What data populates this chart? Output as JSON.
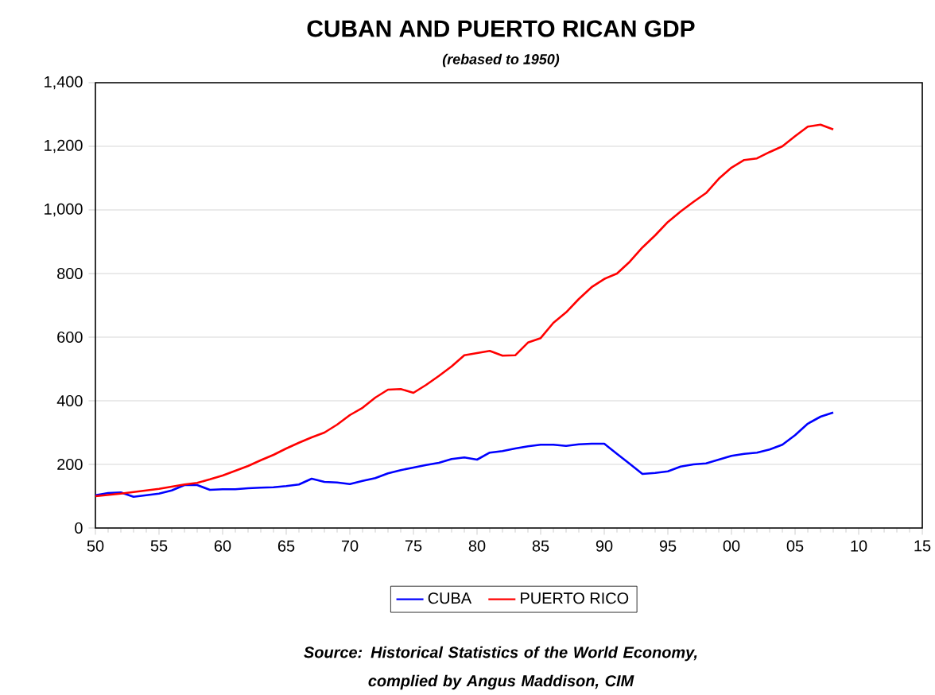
{
  "chart_data": {
    "type": "line",
    "title": "CUBAN AND PUERTO RICAN GDP",
    "subtitle": "(rebased to 1950)",
    "x": [
      1950,
      1951,
      1952,
      1953,
      1954,
      1955,
      1956,
      1957,
      1958,
      1959,
      1960,
      1961,
      1962,
      1963,
      1964,
      1965,
      1966,
      1967,
      1968,
      1969,
      1970,
      1971,
      1972,
      1973,
      1974,
      1975,
      1976,
      1977,
      1978,
      1979,
      1980,
      1981,
      1982,
      1983,
      1984,
      1985,
      1986,
      1987,
      1988,
      1989,
      1990,
      1991,
      1992,
      1993,
      1994,
      1995,
      1996,
      1997,
      1998,
      1999,
      2000,
      2001,
      2002,
      2003,
      2004,
      2005,
      2006,
      2007,
      2008
    ],
    "series": [
      {
        "name": "CUBA",
        "color": "#0000ff",
        "values": [
          103,
          110,
          112,
          98,
          103,
          108,
          118,
          135,
          135,
          120,
          122,
          122,
          125,
          127,
          128,
          132,
          137,
          155,
          145,
          143,
          138,
          148,
          157,
          172,
          182,
          190,
          198,
          205,
          217,
          222,
          215,
          237,
          242,
          250,
          257,
          262,
          262,
          258,
          263,
          265,
          265,
          233,
          202,
          170,
          173,
          178,
          193,
          200,
          203,
          215,
          227,
          233,
          237,
          247,
          262,
          292,
          328,
          350,
          363
        ]
      },
      {
        "name": "PUERTO RICO",
        "color": "#ff0000",
        "values": [
          100,
          104,
          108,
          113,
          118,
          123,
          130,
          137,
          142,
          153,
          165,
          180,
          195,
          213,
          230,
          250,
          268,
          285,
          300,
          325,
          355,
          378,
          410,
          435,
          437,
          425,
          450,
          478,
          508,
          543,
          550,
          557,
          542,
          543,
          583,
          597,
          645,
          678,
          720,
          757,
          783,
          800,
          837,
          882,
          920,
          962,
          995,
          1025,
          1053,
          1098,
          1133,
          1157,
          1162,
          1182,
          1200,
          1232,
          1262,
          1268,
          1253
        ]
      }
    ],
    "xlim": [
      1950,
      2015
    ],
    "xticks": [
      {
        "value": 1950,
        "label": "50"
      },
      {
        "value": 1955,
        "label": "55"
      },
      {
        "value": 1960,
        "label": "60"
      },
      {
        "value": 1965,
        "label": "65"
      },
      {
        "value": 1970,
        "label": "70"
      },
      {
        "value": 1975,
        "label": "75"
      },
      {
        "value": 1980,
        "label": "80"
      },
      {
        "value": 1985,
        "label": "85"
      },
      {
        "value": 1990,
        "label": "90"
      },
      {
        "value": 1995,
        "label": "95"
      },
      {
        "value": 2000,
        "label": "00"
      },
      {
        "value": 2005,
        "label": "05"
      },
      {
        "value": 2010,
        "label": "10"
      },
      {
        "value": 2015,
        "label": "15"
      }
    ],
    "ylim": [
      0,
      1400
    ],
    "yticks": [
      0,
      200,
      400,
      600,
      800,
      {
        "value": 1000,
        "label": "1,000"
      },
      {
        "value": 1200,
        "label": "1,200"
      },
      {
        "value": 1400,
        "label": "1,400"
      }
    ],
    "grid": "y",
    "legend": "bottom",
    "marker": "none",
    "line_style": "solid",
    "annotations": [
      "Source:  Historical Statistics of the World Economy,\ncomplied by Angus Maddison, CIM"
    ]
  }
}
